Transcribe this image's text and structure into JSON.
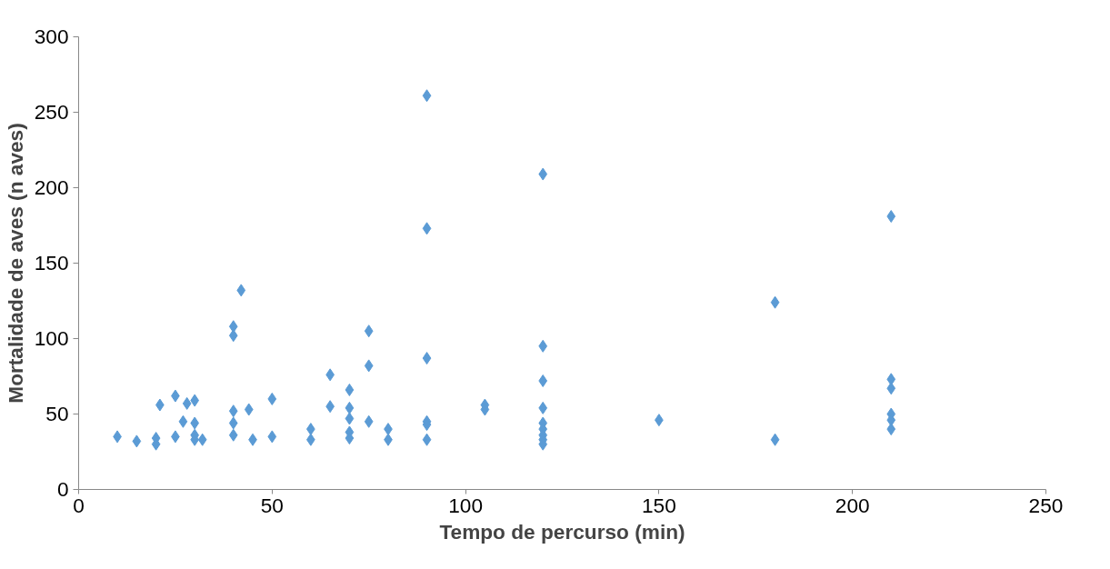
{
  "chart_data": {
    "type": "scatter",
    "xlabel": "Tempo de percurso (min)",
    "ylabel": "Mortalidade de aves (n aves)",
    "xlim": [
      0,
      250
    ],
    "xticks": [
      0,
      50,
      100,
      150,
      200,
      250
    ],
    "ylim": [
      0,
      300
    ],
    "yticks": [
      0,
      50,
      100,
      150,
      200,
      250,
      300
    ],
    "grid": false,
    "marker": "diamond",
    "series": [
      {
        "color": "#5b9bd5",
        "x": [
          10,
          15,
          20,
          20,
          21,
          25,
          25,
          27,
          28,
          30,
          30,
          30,
          30,
          32,
          40,
          40,
          40,
          40,
          40,
          42,
          44,
          45,
          50,
          50,
          60,
          60,
          65,
          65,
          70,
          70,
          70,
          70,
          70,
          75,
          75,
          75,
          80,
          80,
          90,
          90,
          90,
          90,
          90,
          90,
          105,
          105,
          120,
          120,
          120,
          120,
          120,
          120,
          120,
          120,
          120,
          150,
          180,
          180,
          210,
          210,
          210,
          210,
          210,
          210
        ],
        "values": [
          35,
          32,
          30,
          34,
          56,
          62,
          35,
          45,
          57,
          59,
          44,
          36,
          33,
          33,
          108,
          102,
          52,
          44,
          36,
          132,
          53,
          33,
          60,
          35,
          40,
          33,
          76,
          55,
          66,
          54,
          47,
          38,
          34,
          105,
          82,
          45,
          40,
          33,
          261,
          173,
          87,
          45,
          43,
          33,
          56,
          53,
          209,
          95,
          72,
          54,
          44,
          40,
          36,
          33,
          30,
          46,
          124,
          33,
          181,
          73,
          67,
          50,
          46,
          40
        ]
      }
    ]
  }
}
